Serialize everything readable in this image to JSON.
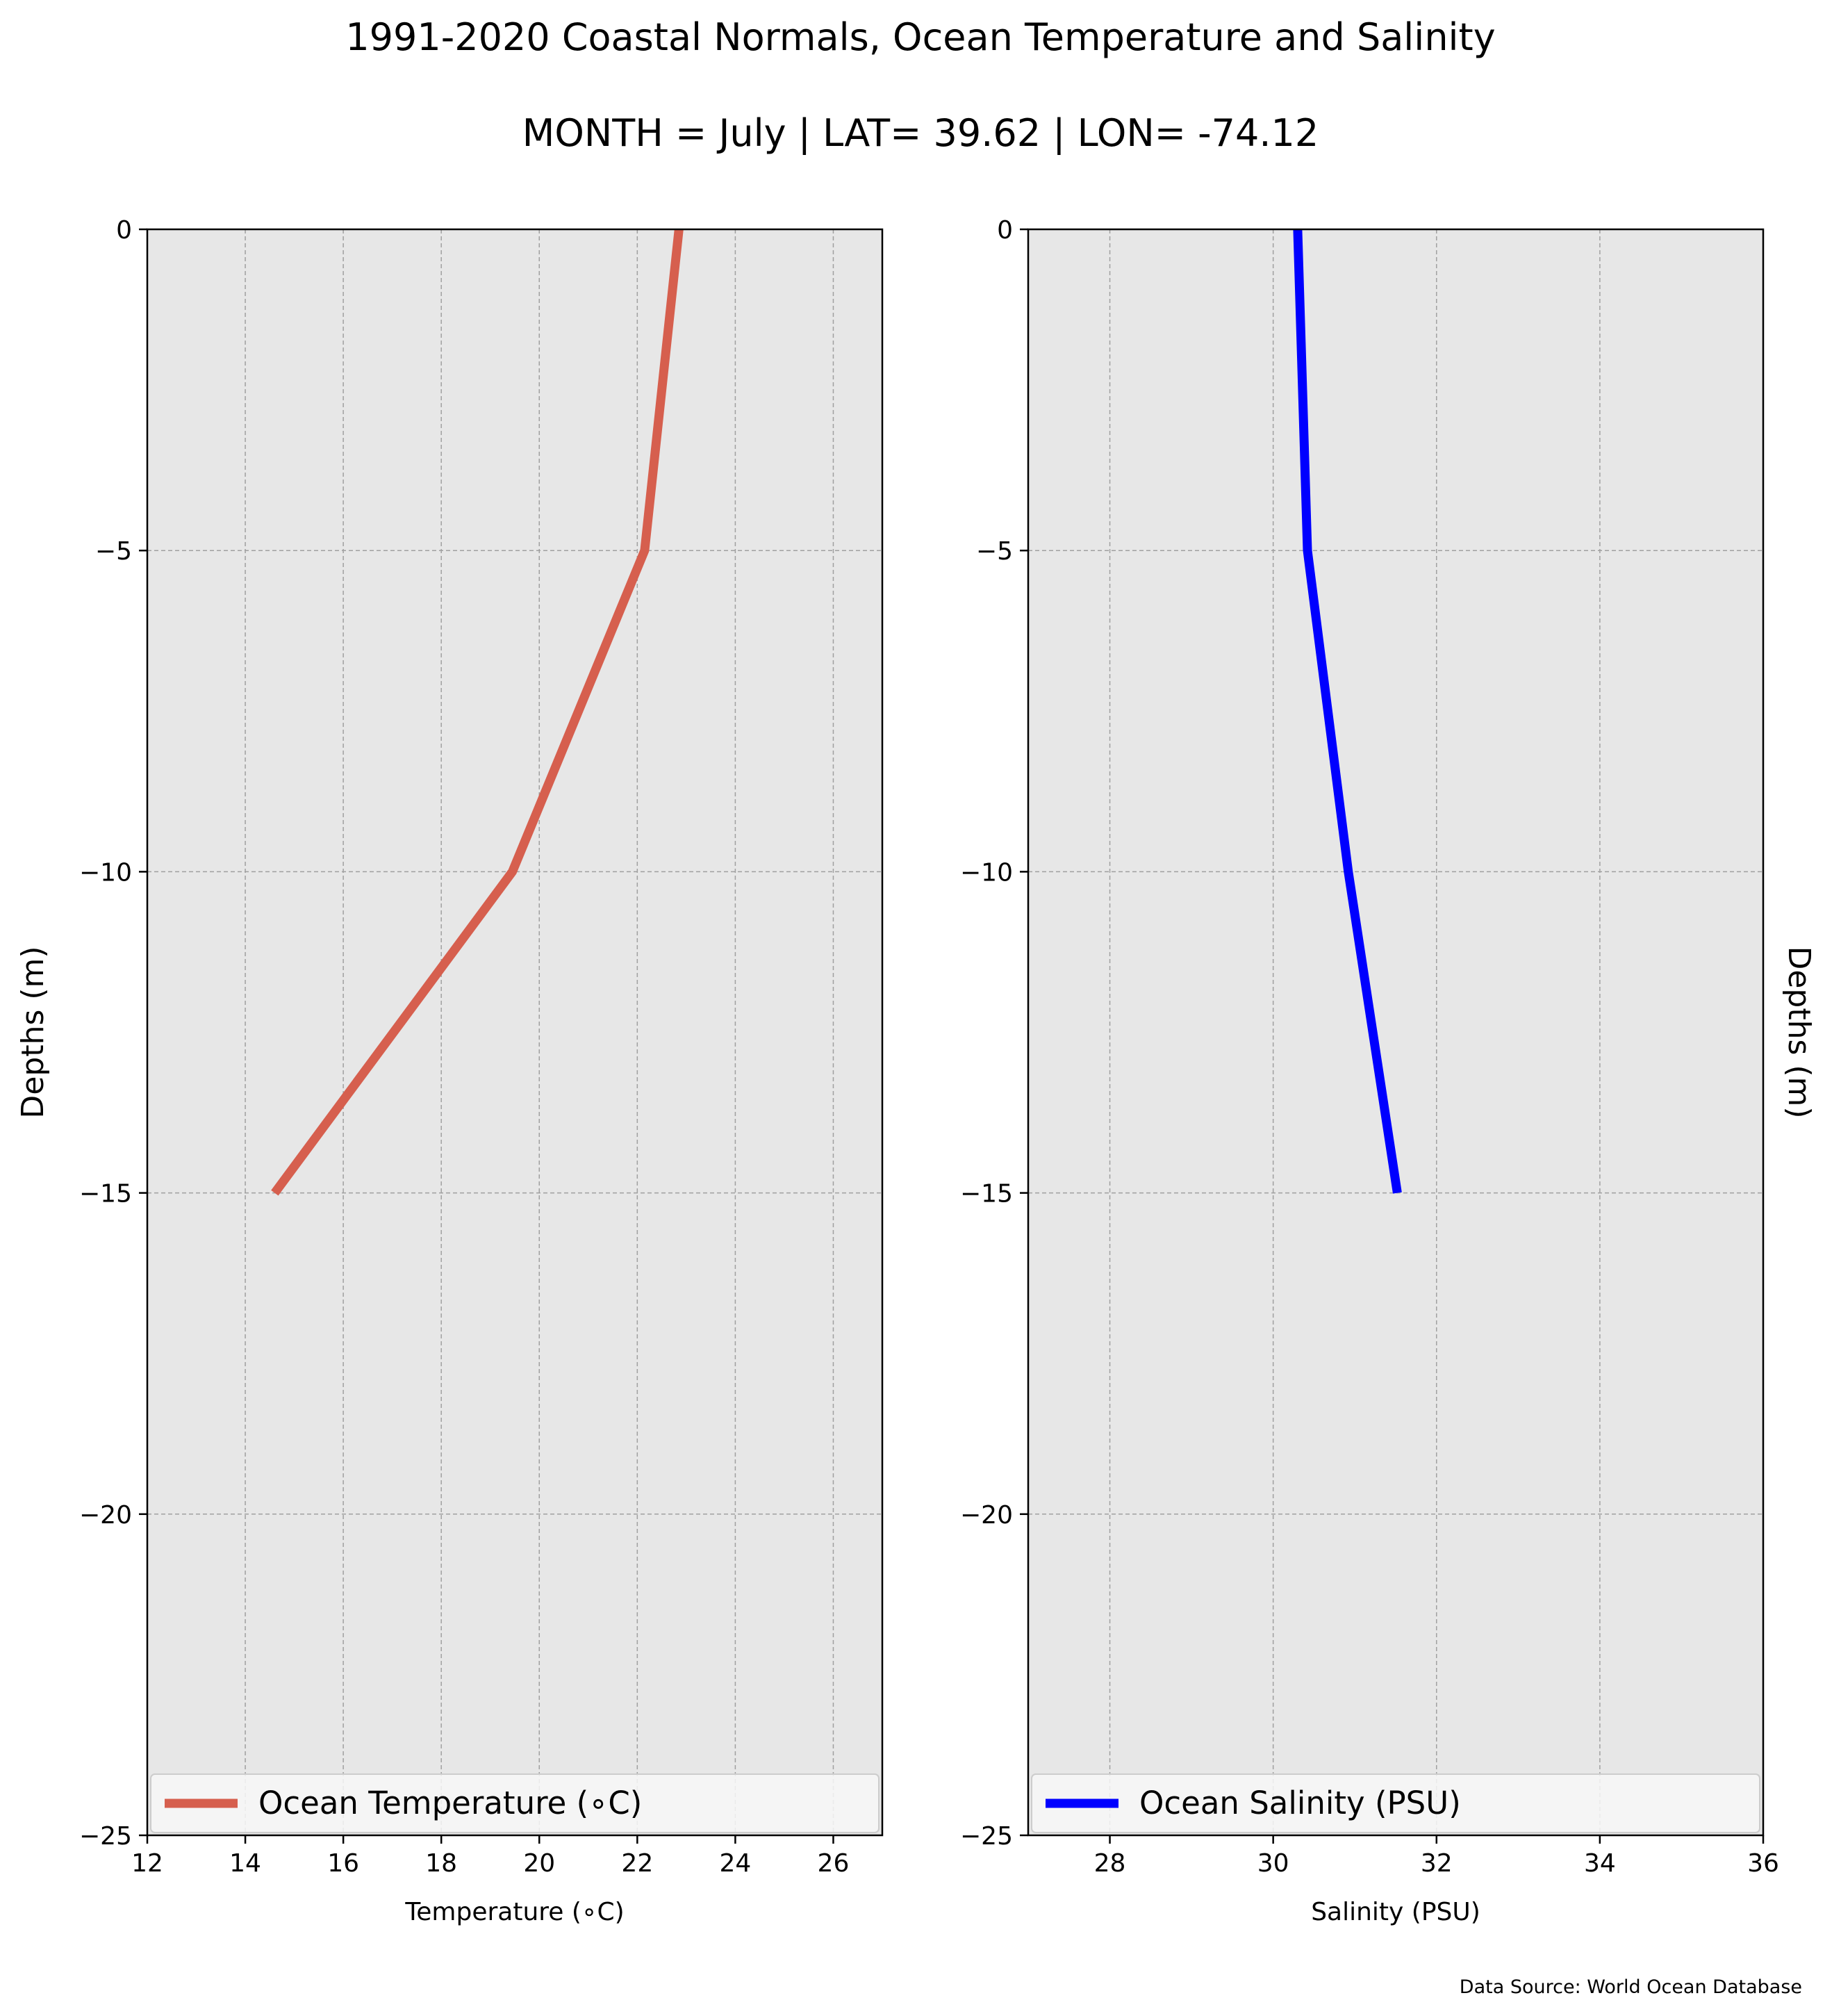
{
  "figure": {
    "title": "1991-2020 Coastal Normals, Ocean Temperature and Salinity",
    "subtitle": "MONTH = July | LAT= 39.62 | LON= -74.12",
    "source_note": "Data Source: World Ocean Database"
  },
  "chart_data": [
    {
      "type": "line",
      "orientation": "vertical-profile",
      "xlabel": "Temperature ($^\\circ$C)",
      "xlabel_display": "Temperature (∘C)",
      "ylabel": "Depths (m)",
      "xlim": [
        12,
        27
      ],
      "ylim": [
        -25,
        0
      ],
      "xticks": [
        12,
        14,
        16,
        18,
        20,
        22,
        24,
        26
      ],
      "yticks": [
        0,
        -5,
        -10,
        -15,
        -20,
        -25
      ],
      "ytick_labels": [
        "0",
        "−5",
        "−10",
        "−15",
        "−20",
        "−25"
      ],
      "grid": true,
      "legend_position": "lower-center",
      "series": [
        {
          "name": "Ocean Temperature (∘C)",
          "color": "#d65f4e",
          "x": [
            22.85,
            22.15,
            19.45,
            14.6
          ],
          "y": [
            0,
            -5,
            -10,
            -15
          ]
        }
      ]
    },
    {
      "type": "line",
      "orientation": "vertical-profile",
      "xlabel": "Salinity (PSU)",
      "ylabel": "Depths (m)",
      "xlim": [
        27,
        36
      ],
      "ylim": [
        -25,
        0
      ],
      "xticks": [
        28,
        30,
        32,
        34,
        36
      ],
      "yticks": [
        0,
        -5,
        -10,
        -15,
        -20,
        -25
      ],
      "ytick_labels": [
        "0",
        "−5",
        "−10",
        "−15",
        "−20",
        "−25"
      ],
      "grid": true,
      "legend_position": "lower-center",
      "series": [
        {
          "name": "Ocean Salinity (PSU)",
          "color": "#0000ff",
          "x": [
            30.3,
            30.42,
            30.92,
            31.52
          ],
          "y": [
            0,
            -5,
            -10,
            -15
          ]
        }
      ]
    }
  ],
  "colors": {
    "plot_background": "#e7e7e7",
    "grid": "#a0a0a0",
    "legend_background": "#f7f7f7"
  }
}
